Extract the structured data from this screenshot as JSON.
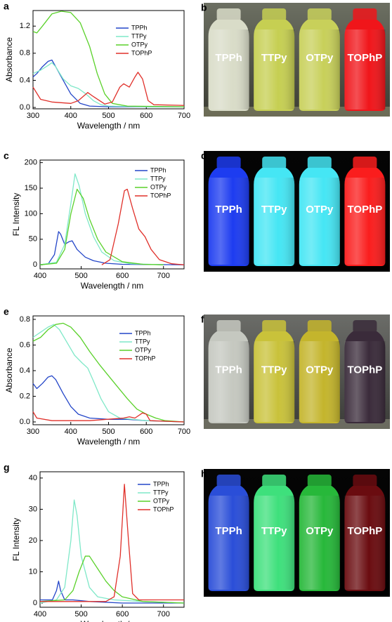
{
  "chart_data": [
    {
      "type": "line",
      "panel": "a",
      "x_label": "Wavelength / nm",
      "y_label": "Absorbance",
      "xlim": [
        300,
        700
      ],
      "xticks": [
        300,
        400,
        500,
        600,
        700
      ],
      "ylim": [
        -0.02,
        1.43
      ],
      "yticks": [
        {
          "value": 0,
          "label": "0.0"
        },
        0.4,
        0.8,
        1.2
      ],
      "series": [
        {
          "name": "TPPh",
          "color": "#2446c8",
          "x": [
            300,
            310,
            325,
            340,
            350,
            360,
            375,
            400,
            425,
            450,
            500,
            600,
            700
          ],
          "values": [
            0.45,
            0.5,
            0.6,
            0.68,
            0.7,
            0.6,
            0.45,
            0.2,
            0.06,
            0.02,
            0.01,
            0.01,
            0.01
          ]
        },
        {
          "name": "TTPy",
          "color": "#7fe8c8",
          "x": [
            300,
            320,
            340,
            350,
            360,
            380,
            400,
            420,
            440,
            460,
            480,
            500,
            600,
            700
          ],
          "values": [
            0.5,
            0.55,
            0.62,
            0.66,
            0.6,
            0.42,
            0.32,
            0.28,
            0.2,
            0.1,
            0.04,
            0.02,
            0.01,
            0.01
          ]
        },
        {
          "name": "OTPy",
          "color": "#5ad12a",
          "x": [
            300,
            310,
            325,
            350,
            375,
            400,
            425,
            450,
            470,
            490,
            510,
            550,
            700
          ],
          "values": [
            1.12,
            1.1,
            1.2,
            1.38,
            1.42,
            1.4,
            1.25,
            0.9,
            0.5,
            0.2,
            0.06,
            0.02,
            0.01
          ]
        },
        {
          "name": "TOPhP",
          "color": "#e0302a",
          "x": [
            300,
            320,
            350,
            400,
            420,
            445,
            460,
            490,
            510,
            530,
            540,
            555,
            570,
            578,
            590,
            605,
            620,
            700
          ],
          "values": [
            0.3,
            0.12,
            0.08,
            0.06,
            0.1,
            0.22,
            0.16,
            0.05,
            0.08,
            0.3,
            0.35,
            0.3,
            0.45,
            0.52,
            0.42,
            0.1,
            0.04,
            0.03
          ]
        }
      ]
    },
    {
      "type": "line",
      "panel": "c",
      "x_label": "Wavelength / nm",
      "y_label": "FL Intensity",
      "xlim": [
        400,
        750
      ],
      "xticks": [
        400,
        500,
        600,
        700
      ],
      "ylim": [
        -8,
        205
      ],
      "yticks": [
        0,
        50,
        100,
        150,
        200
      ],
      "series": [
        {
          "name": "TPPh",
          "color": "#2446c8",
          "x": [
            400,
            420,
            435,
            445,
            450,
            460,
            470,
            478,
            490,
            510,
            530,
            560,
            600,
            750
          ],
          "values": [
            0,
            2,
            20,
            65,
            60,
            40,
            45,
            47,
            30,
            15,
            8,
            3,
            1,
            0
          ]
        },
        {
          "name": "TTPy",
          "color": "#7fe8c8",
          "x": [
            400,
            440,
            460,
            475,
            485,
            495,
            510,
            530,
            550,
            580,
            620,
            700
          ],
          "values": [
            0,
            5,
            40,
            120,
            178,
            155,
            100,
            55,
            25,
            8,
            2,
            0
          ]
        },
        {
          "name": "OTPy",
          "color": "#5ad12a",
          "x": [
            400,
            440,
            460,
            475,
            490,
            505,
            520,
            540,
            560,
            600,
            650,
            700
          ],
          "values": [
            0,
            3,
            30,
            100,
            148,
            130,
            90,
            50,
            25,
            6,
            1,
            0
          ]
        },
        {
          "name": "TOPhP",
          "color": "#e0302a",
          "x": [
            550,
            570,
            590,
            605,
            612,
            625,
            640,
            655,
            670,
            690,
            720,
            750
          ],
          "values": [
            0,
            10,
            80,
            145,
            148,
            110,
            70,
            55,
            30,
            10,
            2,
            0
          ]
        }
      ]
    },
    {
      "type": "line",
      "panel": "e",
      "x_label": "Wavelength / nm",
      "y_label": "Absorbance",
      "xlim": [
        300,
        700
      ],
      "xticks": [
        300,
        400,
        500,
        600,
        700
      ],
      "ylim": [
        -0.022,
        0.827
      ],
      "yticks": [
        {
          "value": 0,
          "label": "0.0"
        },
        0.2,
        0.4,
        0.6,
        0.8
      ],
      "series": [
        {
          "name": "TPPh",
          "color": "#2446c8",
          "x": [
            300,
            310,
            325,
            340,
            350,
            360,
            380,
            400,
            420,
            450,
            500,
            550,
            600,
            700
          ],
          "values": [
            0.3,
            0.26,
            0.3,
            0.35,
            0.36,
            0.33,
            0.22,
            0.12,
            0.06,
            0.03,
            0.02,
            0.02,
            0.01,
            0
          ]
        },
        {
          "name": "TTPy",
          "color": "#7fe8c8",
          "x": [
            300,
            320,
            340,
            355,
            370,
            390,
            410,
            430,
            445,
            460,
            480,
            500,
            530,
            600,
            700
          ],
          "values": [
            0.66,
            0.7,
            0.74,
            0.76,
            0.72,
            0.62,
            0.52,
            0.46,
            0.42,
            0.32,
            0.18,
            0.08,
            0.03,
            0.01,
            0
          ]
        },
        {
          "name": "OTPy",
          "color": "#5ad12a",
          "x": [
            300,
            320,
            340,
            360,
            380,
            400,
            425,
            450,
            475,
            500,
            525,
            550,
            575,
            600,
            625,
            650,
            700
          ],
          "values": [
            0.63,
            0.66,
            0.72,
            0.76,
            0.77,
            0.74,
            0.66,
            0.55,
            0.45,
            0.36,
            0.27,
            0.18,
            0.1,
            0.06,
            0.03,
            0.01,
            0
          ]
        },
        {
          "name": "TOPhP",
          "color": "#e0302a",
          "x": [
            300,
            310,
            350,
            450,
            540,
            555,
            570,
            590,
            600,
            610,
            700
          ],
          "values": [
            0.08,
            0.03,
            0.01,
            0.01,
            0.03,
            0.04,
            0.03,
            0.07,
            0.06,
            0.01,
            0
          ]
        }
      ]
    },
    {
      "type": "line",
      "panel": "g",
      "x_label": "Wavelength / nm",
      "y_label": "FL Intensity",
      "xlim": [
        400,
        750
      ],
      "xticks": [
        400,
        500,
        600,
        700
      ],
      "ylim": [
        -1.35,
        42
      ],
      "yticks": [
        0,
        10,
        20,
        30,
        40
      ],
      "series": [
        {
          "name": "TPPh",
          "color": "#2446c8",
          "x": [
            400,
            430,
            440,
            445,
            450,
            460,
            480,
            520,
            600,
            750
          ],
          "values": [
            1,
            1,
            4,
            7,
            4,
            1,
            1,
            0.5,
            0,
            0
          ]
        },
        {
          "name": "TTPy",
          "color": "#7fe8c8",
          "x": [
            400,
            440,
            460,
            475,
            483,
            490,
            500,
            520,
            540,
            580,
            650,
            750
          ],
          "values": [
            0,
            1,
            5,
            20,
            33,
            28,
            15,
            5,
            2,
            1,
            0.5,
            0
          ]
        },
        {
          "name": "OTPy",
          "color": "#5ad12a",
          "x": [
            400,
            460,
            480,
            495,
            510,
            520,
            540,
            560,
            580,
            600,
            650,
            750
          ],
          "values": [
            0.5,
            1,
            4,
            10,
            15,
            15,
            11,
            7,
            4,
            2,
            0.5,
            0
          ]
        },
        {
          "name": "TOPhP",
          "color": "#e0302a",
          "x": [
            400,
            560,
            580,
            595,
            605,
            615,
            625,
            640,
            750
          ],
          "values": [
            0.5,
            0.5,
            2,
            15,
            38,
            20,
            3,
            1,
            1
          ]
        }
      ]
    }
  ],
  "photos": [
    {
      "panel": "b",
      "labels": [
        "TPPh",
        "TTPy",
        "OTPy",
        "TOPhP"
      ]
    },
    {
      "panel": "d",
      "labels": [
        "TPPh",
        "TTPy",
        "OTPy",
        "TOPhP"
      ]
    },
    {
      "panel": "f",
      "labels": [
        "TPPh",
        "TTPy",
        "OTPy",
        "TOPhP"
      ]
    },
    {
      "panel": "h",
      "labels": [
        "TPPh",
        "TTPy",
        "OTPy",
        "TOPhP"
      ]
    }
  ]
}
